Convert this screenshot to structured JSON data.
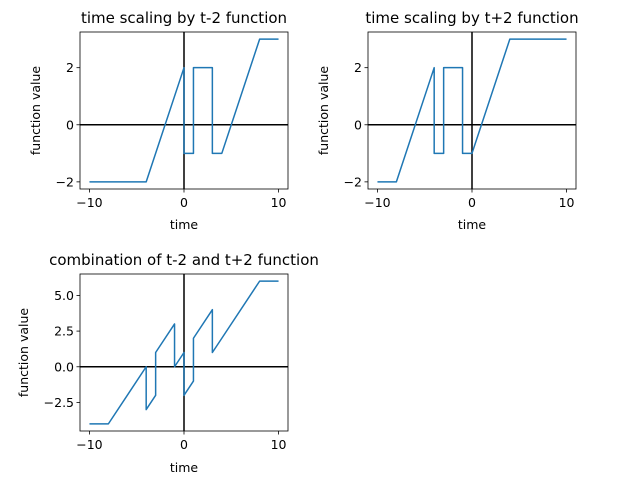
{
  "chart_data": [
    {
      "type": "line",
      "title": "time scaling by t-2 function",
      "xlabel": "time",
      "ylabel": "function value",
      "xlim": [
        -11,
        11
      ],
      "ylim": [
        -2.25,
        3.25
      ],
      "xticks": [
        -10,
        0,
        10
      ],
      "yticks": [
        -2,
        0,
        2
      ],
      "series_color": "#1f77b4",
      "reference_lines": {
        "x": 0,
        "y": 0,
        "color": "#000000"
      },
      "series": [
        {
          "x": [
            -10,
            -4,
            0,
            0,
            1,
            1,
            3,
            3,
            4,
            8,
            10
          ],
          "y": [
            -2,
            -2,
            2,
            -1,
            -1,
            2,
            2,
            -1,
            -1,
            3,
            3
          ]
        }
      ]
    },
    {
      "type": "line",
      "title": "time scaling by t+2 function",
      "xlabel": "time",
      "ylabel": "function value",
      "xlim": [
        -11,
        11
      ],
      "ylim": [
        -2.25,
        3.25
      ],
      "xticks": [
        -10,
        0,
        10
      ],
      "yticks": [
        -2,
        0,
        2
      ],
      "series_color": "#1f77b4",
      "reference_lines": {
        "x": 0,
        "y": 0,
        "color": "#000000"
      },
      "series": [
        {
          "x": [
            -10,
            -8,
            -4,
            -4,
            -3,
            -3,
            -1,
            -1,
            0,
            4,
            10
          ],
          "y": [
            -2,
            -2,
            2,
            -1,
            -1,
            2,
            2,
            -1,
            -1,
            3,
            3
          ]
        }
      ]
    },
    {
      "type": "line",
      "title": "combination of t-2 and t+2 function",
      "xlabel": "time",
      "ylabel": "function value",
      "xlim": [
        -11,
        11
      ],
      "ylim": [
        -4.5,
        6.5
      ],
      "xticks": [
        -10,
        0,
        10
      ],
      "yticks": [
        -2.5,
        0.0,
        2.5,
        5.0
      ],
      "ytick_labels": [
        "−2.5",
        "0.0",
        "2.5",
        "5.0"
      ],
      "series_color": "#1f77b4",
      "reference_lines": {
        "x": 0,
        "y": 0,
        "color": "#000000"
      },
      "series": [
        {
          "x": [
            -10,
            -8,
            -4,
            -4,
            -3,
            -3,
            -1,
            -1,
            0,
            0,
            1,
            1,
            3,
            3,
            4,
            8,
            10
          ],
          "y": [
            -4,
            -4,
            0,
            -3,
            -2,
            1,
            3,
            0,
            1,
            -2,
            -1,
            2,
            4,
            1,
            2,
            6,
            6
          ]
        }
      ]
    }
  ]
}
